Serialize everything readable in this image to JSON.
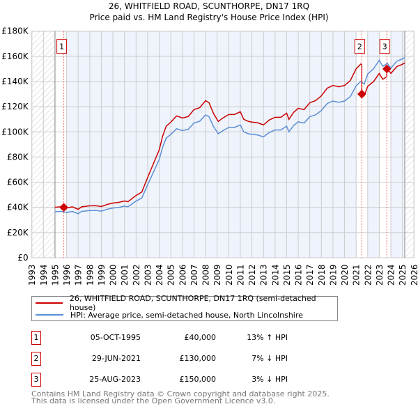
{
  "chart_data": {
    "type": "line",
    "title": "26, WHITFIELD ROAD, SCUNTHORPE, DN17 1RQ",
    "subtitle": "Price paid vs. HM Land Registry's House Price Index (HPI)",
    "xlim": [
      1993,
      2026
    ],
    "ylim": [
      0,
      180000
    ],
    "y_ticks": [
      0,
      20000,
      40000,
      60000,
      80000,
      100000,
      120000,
      140000,
      160000,
      180000
    ],
    "y_tick_labels": [
      "£0",
      "£20K",
      "£40K",
      "£60K",
      "£80K",
      "£100K",
      "£120K",
      "£140K",
      "£160K",
      "£180K"
    ],
    "x_ticks": [
      "1993",
      "1994",
      "1995",
      "1996",
      "1997",
      "1998",
      "1999",
      "2000",
      "2001",
      "2002",
      "2003",
      "2004",
      "2005",
      "2006",
      "2007",
      "2008",
      "2009",
      "2010",
      "2011",
      "2012",
      "2013",
      "2014",
      "2015",
      "2016",
      "2017",
      "2018",
      "2019",
      "2020",
      "2021",
      "2022",
      "2023",
      "2024",
      "2025",
      "2026"
    ],
    "grid": true,
    "data_range": [
      1995.0,
      2025.2
    ],
    "colors": {
      "property": "#cc0000",
      "hpi": "#5b8fd4",
      "shade": "#eef3fc"
    },
    "hpi_series": {
      "x": [
        1995.0,
        1995.5,
        1996.0,
        1996.5,
        1997.0,
        1997.3,
        1998.0,
        1998.5,
        1999.0,
        1999.5,
        2000.0,
        2000.5,
        2001.0,
        2001.3,
        2002.0,
        2002.5,
        2003.0,
        2003.5,
        2004.0,
        2004.3,
        2004.6,
        2005.0,
        2005.5,
        2006.0,
        2006.5,
        2007.0,
        2007.5,
        2008.0,
        2008.3,
        2008.7,
        2009.1,
        2009.5,
        2010.0,
        2010.5,
        2011.0,
        2011.3,
        2011.7,
        2012.0,
        2012.5,
        2013.0,
        2013.5,
        2014.0,
        2014.5,
        2015.0,
        2015.2,
        2015.6,
        2016.0,
        2016.5,
        2017.0,
        2017.5,
        2018.0,
        2018.5,
        2019.0,
        2019.5,
        2020.0,
        2020.5,
        2021.0,
        2021.4,
        2021.7,
        2022.0,
        2022.5,
        2023.0,
        2023.3,
        2023.7,
        2024.0,
        2024.5,
        2025.0,
        2025.2
      ],
      "y": [
        36500,
        36800,
        36000,
        36800,
        35000,
        36800,
        37500,
        37600,
        37000,
        38500,
        39500,
        40000,
        41000,
        40500,
        45000,
        47500,
        58000,
        68000,
        78000,
        88000,
        95000,
        98000,
        102500,
        101000,
        102000,
        107000,
        108500,
        113500,
        112000,
        104000,
        98500,
        101000,
        103500,
        103500,
        105500,
        100000,
        98500,
        98000,
        97500,
        96000,
        99500,
        101500,
        101500,
        104500,
        100000,
        105000,
        108000,
        107000,
        112000,
        113500,
        117000,
        122500,
        124500,
        123500,
        124500,
        128000,
        136500,
        140000,
        138000,
        146000,
        150000,
        157000,
        152000,
        154500,
        150500,
        156000,
        158000,
        159000
      ]
    },
    "sales": [
      {
        "id": "1",
        "x": 1995.76,
        "price": 40000,
        "date": "05-OCT-1995",
        "price_label": "£40,000",
        "hpi_diff": "13% ↑ HPI"
      },
      {
        "id": "2",
        "x": 2021.49,
        "price": 130000,
        "date": "29-JUN-2021",
        "price_label": "£130,000",
        "hpi_diff": "7% ↓ HPI"
      },
      {
        "id": "3",
        "x": 2023.65,
        "price": 150000,
        "date": "25-AUG-2023",
        "price_label": "£150,000",
        "hpi_diff": "3% ↓ HPI"
      }
    ],
    "legend": {
      "placement": "bottom",
      "property": "26, WHITFIELD ROAD, SCUNTHORPE, DN17 1RQ (semi-detached house)",
      "hpi": "HPI: Average price, semi-detached house, North Lincolnshire"
    }
  },
  "footer": {
    "line1": "Contains HM Land Registry data © Crown copyright and database right 2025.",
    "line2": "This data is licensed under the Open Government Licence v3.0."
  }
}
